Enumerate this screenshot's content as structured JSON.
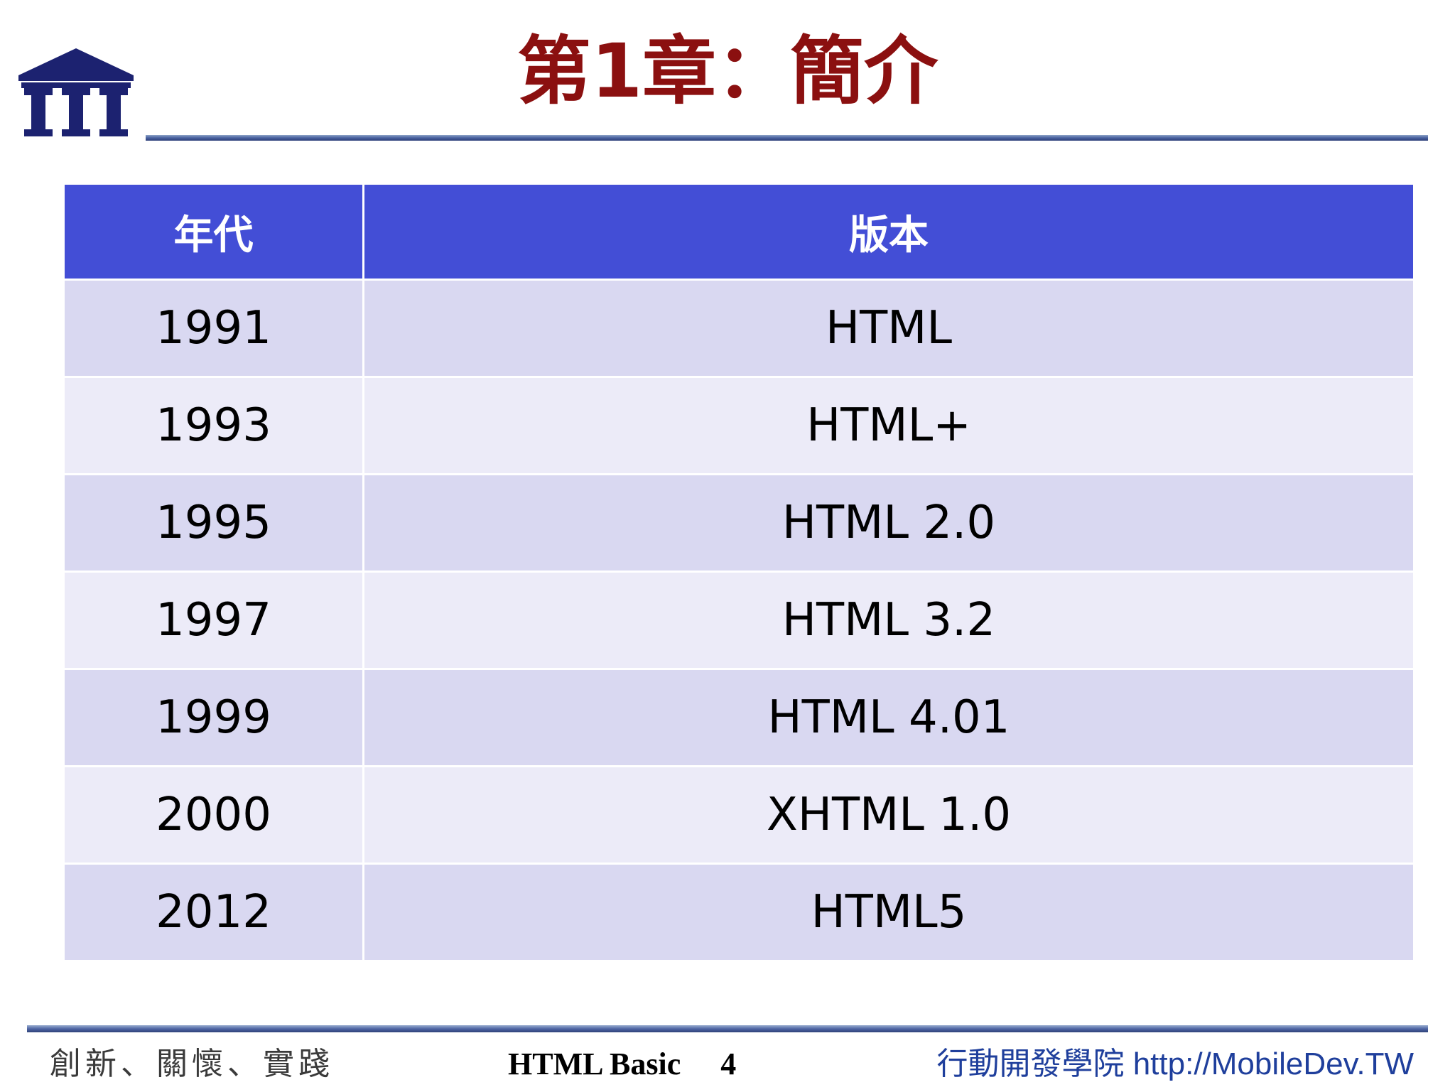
{
  "slide": {
    "title": "第1章：簡介"
  },
  "table": {
    "headers": [
      "年代",
      "版本"
    ],
    "rows": [
      [
        "1991",
        "HTML"
      ],
      [
        "1993",
        "HTML+"
      ],
      [
        "1995",
        "HTML 2.0"
      ],
      [
        "1997",
        "HTML 3.2"
      ],
      [
        "1999",
        "HTML 4.01"
      ],
      [
        "2000",
        "XHTML 1.0"
      ],
      [
        "2012",
        "HTML5"
      ]
    ]
  },
  "footer": {
    "motto": "創新、關懷、實踐",
    "course": "HTML Basic",
    "page_number": "4",
    "org": "行動開發學院 http://MobileDev.TW"
  },
  "colors": {
    "title": "#8b1010",
    "header_bg": "#434ed6",
    "row_odd": "#d9d8f1",
    "row_even": "#ecebf8",
    "logo": "#1c2270",
    "footer_link": "#1f3f9c"
  }
}
